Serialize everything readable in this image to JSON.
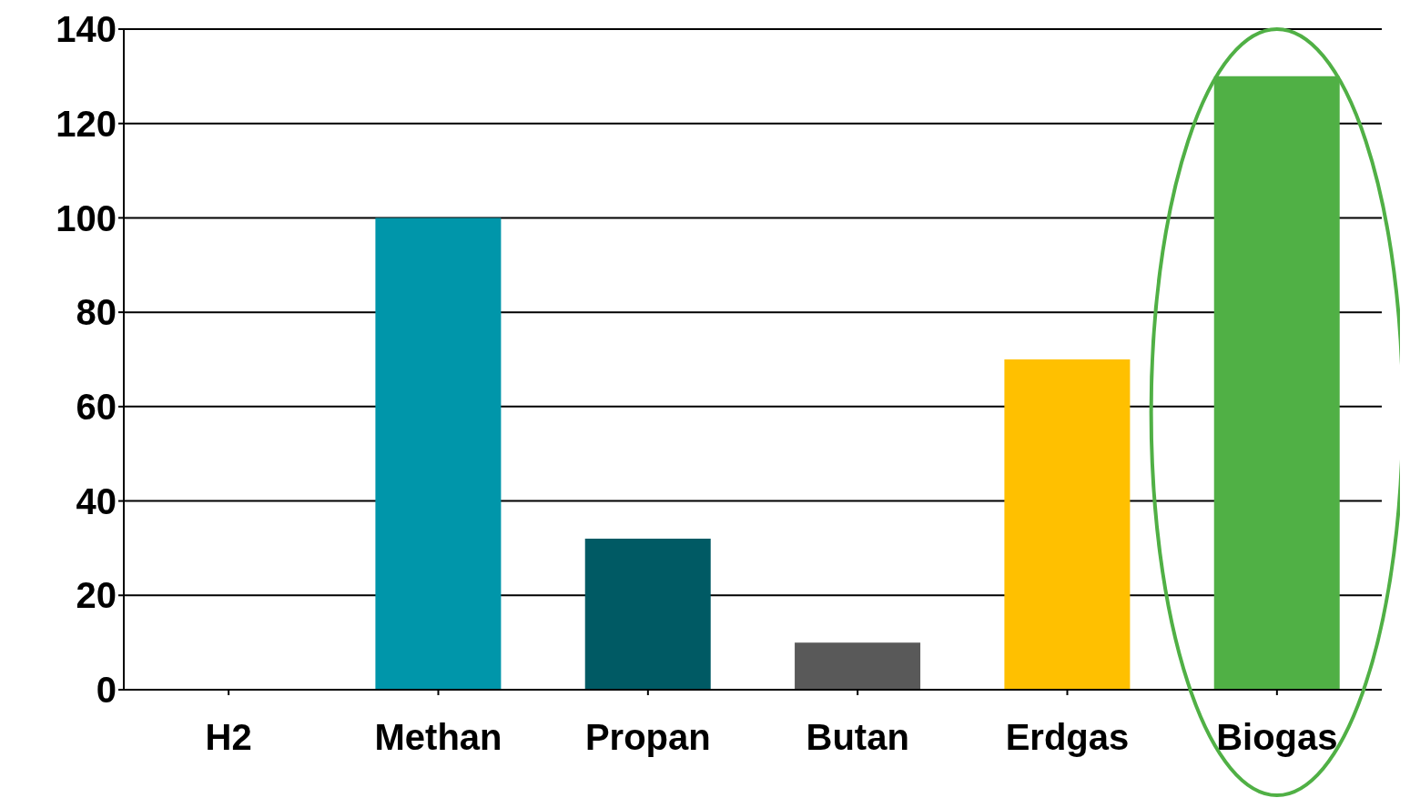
{
  "chart_data": {
    "type": "bar",
    "categories": [
      "H2",
      "Methan",
      "Propan",
      "Butan",
      "Erdgas",
      "Biogas"
    ],
    "values": [
      0,
      100,
      32,
      10,
      70,
      130
    ],
    "colors": [
      "#c00000",
      "#0096aa",
      "#005a64",
      "#595959",
      "#ffc000",
      "#50b045"
    ],
    "ylim": [
      0,
      140
    ],
    "yticks": [
      0,
      20,
      40,
      60,
      80,
      100,
      120,
      140
    ],
    "grid": "y"
  }
}
